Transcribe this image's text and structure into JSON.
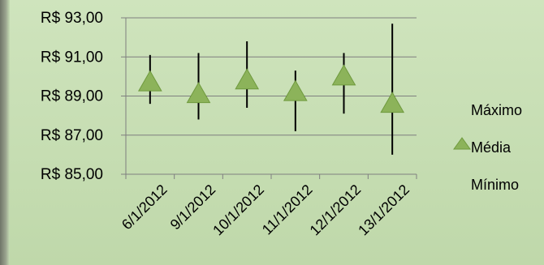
{
  "chart_data": {
    "type": "stock-hlc",
    "title": "",
    "xlabel": "",
    "ylabel": "",
    "categories": [
      "6/1/2012",
      "9/1/2012",
      "10/1/2012",
      "11/1/2012",
      "12/1/2012",
      "13/1/2012"
    ],
    "series": [
      {
        "name": "Máximo",
        "values": [
          91.1,
          91.2,
          91.8,
          90.3,
          91.2,
          92.7
        ]
      },
      {
        "name": "Média",
        "values": [
          89.7,
          89.1,
          89.8,
          89.2,
          90.0,
          88.6
        ]
      },
      {
        "name": "Mínimo",
        "values": [
          88.6,
          87.8,
          88.4,
          87.2,
          88.1,
          86.0
        ]
      }
    ],
    "ylim": [
      85,
      93
    ],
    "ytick_labels": [
      "R$ 85,00",
      "R$ 87,00",
      "R$ 89,00",
      "R$ 91,00",
      "R$ 93,00"
    ],
    "ytick_values": [
      85,
      87,
      89,
      91,
      93
    ],
    "grid": true,
    "legend_position": "right",
    "colors": {
      "marker": "#8cb35a",
      "marker_stroke": "#6f9a3e",
      "range_line": "#000000",
      "gridline": "#7f7f7f",
      "axis": "#7f7f7f",
      "text": "#000000"
    }
  }
}
